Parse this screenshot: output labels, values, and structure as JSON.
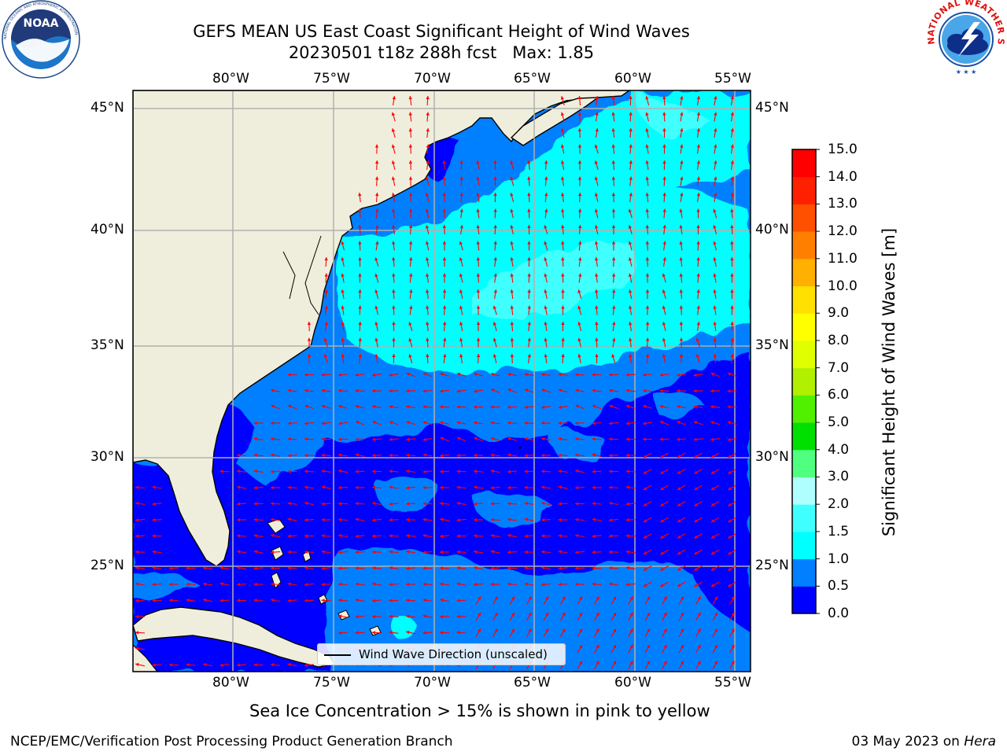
{
  "title": {
    "line1": "GEFS MEAN US East Coast Significant Height of Wind Waves",
    "line2": "20230501 t18z 288h fcst   Max: 1.85"
  },
  "logos": {
    "noaa": {
      "text": "NOAA",
      "ring_text": "NATIONAL OCEANIC AND ATMOSPHERIC ADMINISTRATION · U.S. DEPARTMENT OF COMMERCE"
    },
    "nws": {
      "ring_text": "NATIONAL WEATHER SERVICE"
    }
  },
  "map": {
    "lon_range": [
      -85,
      -54.3
    ],
    "lat_range": [
      20.5,
      46.4
    ],
    "lon_ticks": [
      "80°W",
      "75°W",
      "70°W",
      "65°W",
      "60°W",
      "55°W"
    ],
    "lat_ticks": [
      "45°N",
      "40°N",
      "35°N",
      "30°N",
      "25°N"
    ],
    "gridlines": true,
    "land_color": "#efeedc"
  },
  "legend": {
    "label": "Wind Wave Direction (unscaled)",
    "arrow_color": "#ff0000",
    "position": "lower-center"
  },
  "colorbar": {
    "ticks": [
      "0.0",
      "0.5",
      "1.0",
      "1.5",
      "2.0",
      "3.0",
      "4.0",
      "5.0",
      "6.0",
      "7.0",
      "8.0",
      "9.0",
      "10.0",
      "11.0",
      "12.0",
      "13.0",
      "14.0",
      "15.0"
    ],
    "colors": [
      "#0000ff",
      "#0080ff",
      "#00ffff",
      "#40ffff",
      "#b0ffff",
      "#50ff80",
      "#00e000",
      "#50f000",
      "#b0f000",
      "#e0ff00",
      "#ffff00",
      "#ffe000",
      "#ffb000",
      "#ff8000",
      "#ff5000",
      "#ff2000",
      "#ff0000"
    ],
    "label": "Significant Height of Wind Waves [m]"
  },
  "subtitle": "Sea Ice Concentration > 15% is shown in pink to yellow",
  "footer": {
    "left": "NCEP/EMC/Verification Post Processing Product Generation Branch",
    "date": "03 May 2023 on",
    "machine": "Hera"
  }
}
